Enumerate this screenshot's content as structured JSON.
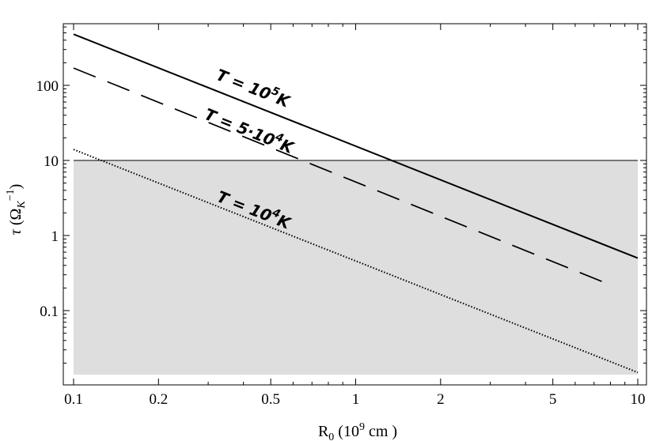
{
  "chart_data": {
    "type": "line",
    "x_scale": "log",
    "y_scale": "log",
    "xlim": [
      0.1,
      10
    ],
    "ylim": [
      0.013,
      500
    ],
    "xlabel": {
      "prefix": "R",
      "sub": "0",
      "suffix1": " (10",
      "sup": "9",
      "suffix2": " cm )"
    },
    "ylabel": {
      "sym": "τ",
      "open": " (Ω",
      "sub": "K",
      "sup": "−1",
      "close": ")"
    },
    "x_ticks": [
      {
        "value": 0.1,
        "label": "0.1"
      },
      {
        "value": 0.2,
        "label": "0.2"
      },
      {
        "value": 0.5,
        "label": "0.5"
      },
      {
        "value": 1,
        "label": "1"
      },
      {
        "value": 2,
        "label": "2"
      },
      {
        "value": 5,
        "label": "5"
      },
      {
        "value": 10,
        "label": "10"
      }
    ],
    "y_ticks": [
      {
        "value": 0.1,
        "label": "0.1"
      },
      {
        "value": 1,
        "label": "1"
      },
      {
        "value": 10,
        "label": "10"
      },
      {
        "value": 100,
        "label": "100"
      }
    ],
    "shaded_region": {
      "y_max": 10,
      "y_min": 0.014,
      "color": "#dedede"
    },
    "series": [
      {
        "name": "T = 10⁵K",
        "style": "solid",
        "x": [
          0.1,
          10
        ],
        "y": [
          480,
          0.5
        ],
        "label": {
          "base": "T = 10",
          "sup": "5",
          "tail": "K"
        }
      },
      {
        "name": "T = 5·10⁴K",
        "style": "dashed",
        "x": [
          0.1,
          8
        ],
        "y": [
          170,
          0.22
        ],
        "label": {
          "base": "T = 5·10",
          "sup": "4",
          "tail": "K"
        }
      },
      {
        "name": "T = 10⁴K",
        "style": "dotted",
        "x": [
          0.1,
          10
        ],
        "y": [
          14,
          0.015
        ],
        "label": {
          "base": "T = 10",
          "sup": "4",
          "tail": "K"
        }
      }
    ]
  }
}
